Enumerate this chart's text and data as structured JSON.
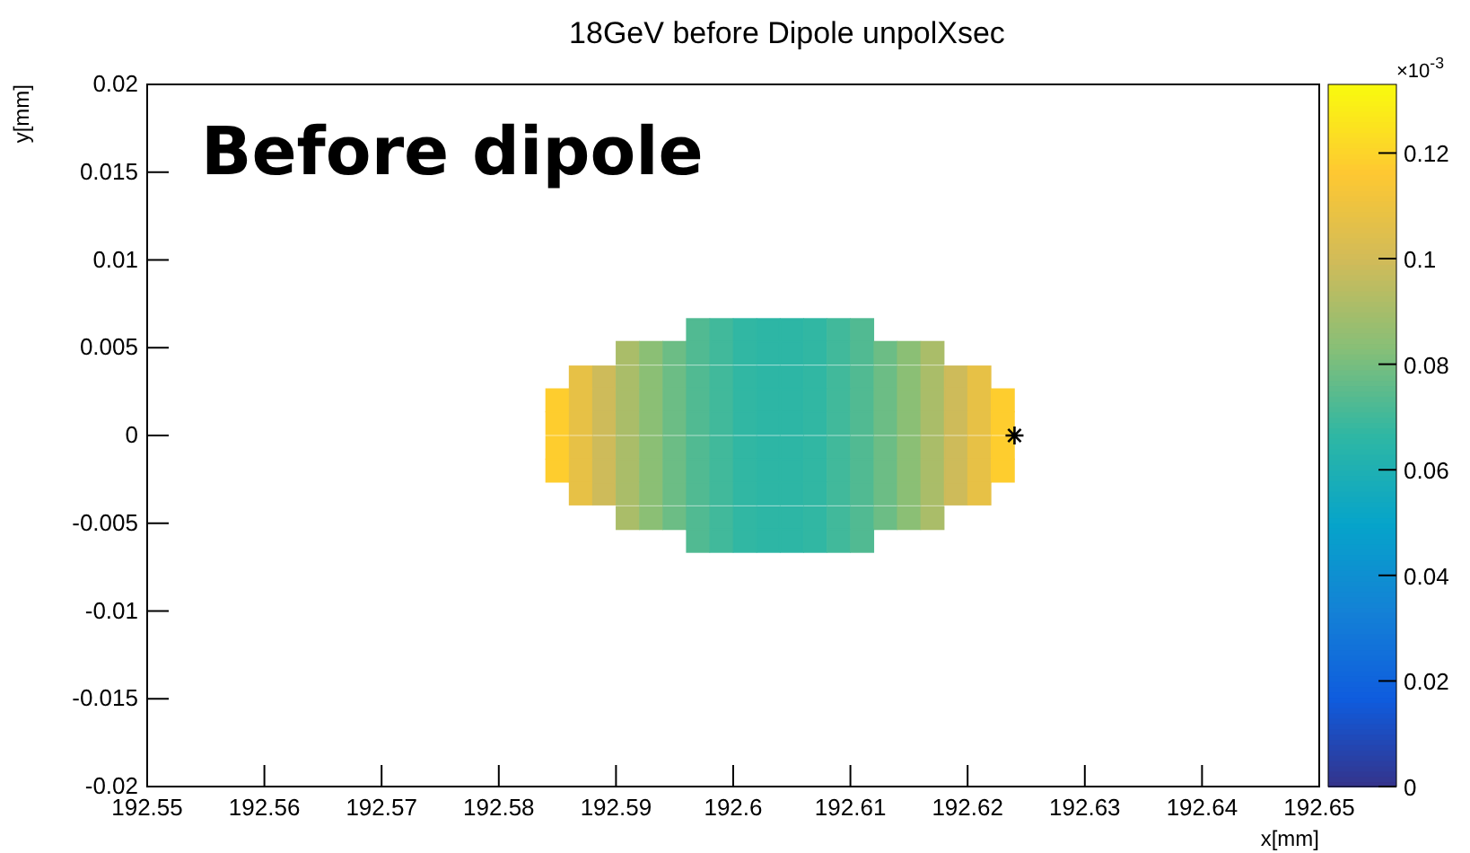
{
  "chart_data": {
    "type": "scatter",
    "title": "18GeV before Dipole unpolXsec",
    "xlabel": "x[mm]",
    "ylabel": "y[mm]",
    "clabel": "×10$^{-3}$",
    "annotations": [
      "Before dipole"
    ],
    "xlim": [
      192.55,
      192.65
    ],
    "ylim": [
      -0.02,
      0.02
    ],
    "xticks": [
      192.55,
      192.56,
      192.57,
      192.58,
      192.59,
      192.6,
      192.61,
      192.62,
      192.63,
      192.64,
      192.65
    ],
    "yticks": [
      -0.02,
      -0.015,
      -0.01,
      -0.005,
      0,
      0.005,
      0.01,
      0.015,
      0.02
    ],
    "clim": [
      0,
      0.133
    ],
    "cticks": [
      0,
      0.02,
      0.04,
      0.06,
      0.08,
      0.1,
      0.12
    ],
    "marker": "square",
    "series": [
      {
        "x": [
          192.597,
          192.599,
          192.601,
          192.603,
          192.605,
          192.607,
          192.609,
          192.611
        ],
        "values": [
          0.006,
          0.006,
          0.006,
          0.006,
          0.006,
          0.006,
          0.006,
          0.006
        ],
        "cvalues": [
          0.073,
          0.07,
          0.067,
          0.066,
          0.066,
          0.067,
          0.07,
          0.073
        ],
        "colors": [
          "#51ba92",
          "#41b99b",
          "#31b7a3",
          "#2db6a5",
          "#2db6a5",
          "#31b7a3",
          "#41b99b",
          "#51ba92"
        ]
      },
      {
        "x": [
          192.591,
          192.593,
          192.595,
          192.597,
          192.599,
          192.601,
          192.603,
          192.605,
          192.607,
          192.609,
          192.611,
          192.613,
          192.615,
          192.617
        ],
        "values": [
          0.0047,
          0.0047,
          0.0047,
          0.0047,
          0.0047,
          0.0047,
          0.0047,
          0.0047,
          0.0047,
          0.0047,
          0.0047,
          0.0047,
          0.0047,
          0.0047
        ],
        "cvalues": [
          0.091,
          0.084,
          0.078,
          0.073,
          0.07,
          0.067,
          0.066,
          0.066,
          0.067,
          0.07,
          0.073,
          0.078,
          0.084,
          0.091
        ],
        "colors": [
          "#aabd69",
          "#8bbf75",
          "#6cbd85",
          "#51ba92",
          "#41b99b",
          "#31b7a3",
          "#2db6a5",
          "#2db6a5",
          "#31b7a3",
          "#41b99b",
          "#51ba92",
          "#6cbd85",
          "#8bbf75",
          "#aabd69"
        ]
      },
      {
        "x": [
          192.587,
          192.589,
          192.591,
          192.593,
          192.595,
          192.597,
          192.599,
          192.601,
          192.603,
          192.605,
          192.607,
          192.609,
          192.611,
          192.613,
          192.615,
          192.617,
          192.619,
          192.621
        ],
        "values": [
          0.0033,
          0.0033,
          0.0033,
          0.0033,
          0.0033,
          0.0033,
          0.0033,
          0.0033,
          0.0033,
          0.0033,
          0.0033,
          0.0033,
          0.0033,
          0.0033,
          0.0033,
          0.0033,
          0.0033,
          0.0033
        ],
        "cvalues": [
          0.108,
          0.099,
          0.091,
          0.084,
          0.078,
          0.073,
          0.07,
          0.067,
          0.066,
          0.066,
          0.067,
          0.07,
          0.073,
          0.078,
          0.084,
          0.091,
          0.099,
          0.108
        ],
        "colors": [
          "#e7c146",
          "#cebb5a",
          "#aabd69",
          "#8bbf75",
          "#6cbd85",
          "#51ba92",
          "#41b99b",
          "#31b7a3",
          "#2db6a5",
          "#2db6a5",
          "#31b7a3",
          "#41b99b",
          "#51ba92",
          "#6cbd85",
          "#8bbf75",
          "#aabd69",
          "#cebb5a",
          "#e7c146"
        ]
      },
      {
        "x": [
          192.585,
          192.587,
          192.589,
          192.591,
          192.593,
          192.595,
          192.597,
          192.599,
          192.601,
          192.603,
          192.605,
          192.607,
          192.609,
          192.611,
          192.613,
          192.615,
          192.617,
          192.619,
          192.621,
          192.623
        ],
        "values": [
          0.002,
          0.002,
          0.002,
          0.002,
          0.002,
          0.002,
          0.002,
          0.002,
          0.002,
          0.002,
          0.002,
          0.002,
          0.002,
          0.002,
          0.002,
          0.002,
          0.002,
          0.002,
          0.002,
          0.002
        ],
        "cvalues": [
          0.118,
          0.108,
          0.099,
          0.091,
          0.084,
          0.078,
          0.073,
          0.07,
          0.067,
          0.066,
          0.066,
          0.067,
          0.07,
          0.073,
          0.078,
          0.084,
          0.091,
          0.099,
          0.108,
          0.118
        ],
        "colors": [
          "#fecd2e",
          "#e7c146",
          "#cebb5a",
          "#aabd69",
          "#8bbf75",
          "#6cbd85",
          "#51ba92",
          "#41b99b",
          "#31b7a3",
          "#2db6a5",
          "#2db6a5",
          "#31b7a3",
          "#41b99b",
          "#51ba92",
          "#6cbd85",
          "#8bbf75",
          "#aabd69",
          "#cebb5a",
          "#e7c146",
          "#fecd2e"
        ]
      },
      {
        "x": [
          192.585,
          192.587,
          192.589,
          192.591,
          192.593,
          192.595,
          192.597,
          192.599,
          192.601,
          192.603,
          192.605,
          192.607,
          192.609,
          192.611,
          192.613,
          192.615,
          192.617,
          192.619,
          192.621,
          192.623
        ],
        "values": [
          0.0007,
          0.0007,
          0.0007,
          0.0007,
          0.0007,
          0.0007,
          0.0007,
          0.0007,
          0.0007,
          0.0007,
          0.0007,
          0.0007,
          0.0007,
          0.0007,
          0.0007,
          0.0007,
          0.0007,
          0.0007,
          0.0007,
          0.0007
        ],
        "cvalues": [
          0.118,
          0.108,
          0.099,
          0.091,
          0.084,
          0.078,
          0.073,
          0.07,
          0.067,
          0.066,
          0.066,
          0.067,
          0.07,
          0.073,
          0.078,
          0.084,
          0.091,
          0.099,
          0.108,
          0.118
        ],
        "colors": [
          "#fecd2e",
          "#e7c146",
          "#cebb5a",
          "#aabd69",
          "#8bbf75",
          "#6cbd85",
          "#51ba92",
          "#41b99b",
          "#31b7a3",
          "#2db6a5",
          "#2db6a5",
          "#31b7a3",
          "#41b99b",
          "#51ba92",
          "#6cbd85",
          "#8bbf75",
          "#aabd69",
          "#cebb5a",
          "#e7c146",
          "#fecd2e"
        ]
      },
      {
        "x": [
          192.585,
          192.587,
          192.589,
          192.591,
          192.593,
          192.595,
          192.597,
          192.599,
          192.601,
          192.603,
          192.605,
          192.607,
          192.609,
          192.611,
          192.613,
          192.615,
          192.617,
          192.619,
          192.621,
          192.623
        ],
        "values": [
          -0.0007,
          -0.0007,
          -0.0007,
          -0.0007,
          -0.0007,
          -0.0007,
          -0.0007,
          -0.0007,
          -0.0007,
          -0.0007,
          -0.0007,
          -0.0007,
          -0.0007,
          -0.0007,
          -0.0007,
          -0.0007,
          -0.0007,
          -0.0007,
          -0.0007,
          -0.0007
        ],
        "cvalues": [
          0.118,
          0.108,
          0.099,
          0.091,
          0.084,
          0.078,
          0.073,
          0.07,
          0.067,
          0.066,
          0.066,
          0.067,
          0.07,
          0.073,
          0.078,
          0.084,
          0.091,
          0.099,
          0.108,
          0.118
        ],
        "colors": [
          "#fecd2e",
          "#e7c146",
          "#cebb5a",
          "#aabd69",
          "#8bbf75",
          "#6cbd85",
          "#51ba92",
          "#41b99b",
          "#31b7a3",
          "#2db6a5",
          "#2db6a5",
          "#31b7a3",
          "#41b99b",
          "#51ba92",
          "#6cbd85",
          "#8bbf75",
          "#aabd69",
          "#cebb5a",
          "#e7c146",
          "#fecd2e"
        ]
      },
      {
        "x": [
          192.585,
          192.587,
          192.589,
          192.591,
          192.593,
          192.595,
          192.597,
          192.599,
          192.601,
          192.603,
          192.605,
          192.607,
          192.609,
          192.611,
          192.613,
          192.615,
          192.617,
          192.619,
          192.621,
          192.623
        ],
        "values": [
          -0.002,
          -0.002,
          -0.002,
          -0.002,
          -0.002,
          -0.002,
          -0.002,
          -0.002,
          -0.002,
          -0.002,
          -0.002,
          -0.002,
          -0.002,
          -0.002,
          -0.002,
          -0.002,
          -0.002,
          -0.002,
          -0.002,
          -0.002
        ],
        "cvalues": [
          0.118,
          0.108,
          0.099,
          0.091,
          0.084,
          0.078,
          0.073,
          0.07,
          0.067,
          0.066,
          0.066,
          0.067,
          0.07,
          0.073,
          0.078,
          0.084,
          0.091,
          0.099,
          0.108,
          0.118
        ],
        "colors": [
          "#fecd2e",
          "#e7c146",
          "#cebb5a",
          "#aabd69",
          "#8bbf75",
          "#6cbd85",
          "#51ba92",
          "#41b99b",
          "#31b7a3",
          "#2db6a5",
          "#2db6a5",
          "#31b7a3",
          "#41b99b",
          "#51ba92",
          "#6cbd85",
          "#8bbf75",
          "#aabd69",
          "#cebb5a",
          "#e7c146",
          "#fecd2e"
        ]
      },
      {
        "x": [
          192.587,
          192.589,
          192.591,
          192.593,
          192.595,
          192.597,
          192.599,
          192.601,
          192.603,
          192.605,
          192.607,
          192.609,
          192.611,
          192.613,
          192.615,
          192.617,
          192.619,
          192.621
        ],
        "values": [
          -0.0033,
          -0.0033,
          -0.0033,
          -0.0033,
          -0.0033,
          -0.0033,
          -0.0033,
          -0.0033,
          -0.0033,
          -0.0033,
          -0.0033,
          -0.0033,
          -0.0033,
          -0.0033,
          -0.0033,
          -0.0033,
          -0.0033,
          -0.0033
        ],
        "cvalues": [
          0.108,
          0.099,
          0.091,
          0.084,
          0.078,
          0.073,
          0.07,
          0.067,
          0.066,
          0.066,
          0.067,
          0.07,
          0.073,
          0.078,
          0.084,
          0.091,
          0.099,
          0.108
        ],
        "colors": [
          "#e7c146",
          "#cebb5a",
          "#aabd69",
          "#8bbf75",
          "#6cbd85",
          "#51ba92",
          "#41b99b",
          "#31b7a3",
          "#2db6a5",
          "#2db6a5",
          "#31b7a3",
          "#41b99b",
          "#51ba92",
          "#6cbd85",
          "#8bbf75",
          "#aabd69",
          "#cebb5a",
          "#e7c146"
        ]
      },
      {
        "x": [
          192.591,
          192.593,
          192.595,
          192.597,
          192.599,
          192.601,
          192.603,
          192.605,
          192.607,
          192.609,
          192.611,
          192.613,
          192.615,
          192.617
        ],
        "values": [
          -0.0047,
          -0.0047,
          -0.0047,
          -0.0047,
          -0.0047,
          -0.0047,
          -0.0047,
          -0.0047,
          -0.0047,
          -0.0047,
          -0.0047,
          -0.0047,
          -0.0047,
          -0.0047
        ],
        "cvalues": [
          0.091,
          0.084,
          0.078,
          0.073,
          0.07,
          0.067,
          0.066,
          0.066,
          0.067,
          0.07,
          0.073,
          0.078,
          0.084,
          0.091
        ],
        "colors": [
          "#aabd69",
          "#8bbf75",
          "#6cbd85",
          "#51ba92",
          "#41b99b",
          "#31b7a3",
          "#2db6a5",
          "#2db6a5",
          "#31b7a3",
          "#41b99b",
          "#51ba92",
          "#6cbd85",
          "#8bbf75",
          "#aabd69"
        ]
      },
      {
        "x": [
          192.597,
          192.599,
          192.601,
          192.603,
          192.605,
          192.607,
          192.609,
          192.611
        ],
        "values": [
          -0.006,
          -0.006,
          -0.006,
          -0.006,
          -0.006,
          -0.006,
          -0.006,
          -0.006
        ],
        "cvalues": [
          0.073,
          0.07,
          0.067,
          0.066,
          0.066,
          0.067,
          0.07,
          0.073
        ],
        "colors": [
          "#51ba92",
          "#41b99b",
          "#31b7a3",
          "#2db6a5",
          "#2db6a5",
          "#31b7a3",
          "#41b99b",
          "#51ba92"
        ]
      },
      {
        "x": [
          192.624
        ],
        "values": [
          0
        ],
        "color": "#000000",
        "marker": "cross"
      }
    ]
  }
}
